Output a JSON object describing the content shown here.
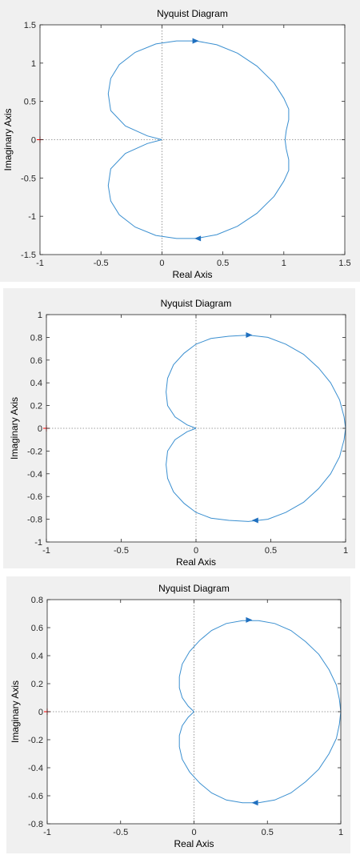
{
  "colors": {
    "curve": "#3a8fd0",
    "critical_point": "#ff0000",
    "axes": "#262626",
    "zero_lines": "#808080",
    "panel_bg": "#f0f0f0"
  },
  "chart_data": [
    {
      "type": "line",
      "title": "Nyquist Diagram",
      "xlabel": "Real Axis",
      "ylabel": "Imaginary Axis",
      "xlim": [
        -1,
        1.5
      ],
      "ylim": [
        -1.5,
        1.5
      ],
      "xticks": [
        "-1",
        "-0.5",
        "0",
        "0.5",
        "1",
        "1.5"
      ],
      "yticks": [
        "1.5",
        "1",
        "0.5",
        "0",
        "-0.5",
        "-1",
        "-1.5"
      ],
      "grid": false,
      "critical_point": [
        -1,
        0
      ],
      "series": [
        {
          "x": [
            0,
            -0.12,
            -0.3,
            -0.42,
            -0.44,
            -0.42,
            -0.35,
            -0.22,
            -0.05,
            0.12,
            0.28,
            0.45,
            0.62,
            0.78,
            0.92,
            1.0,
            1.04,
            1.04,
            1.02,
            1.01
          ],
          "y": [
            0,
            0.05,
            0.18,
            0.38,
            0.6,
            0.8,
            0.98,
            1.14,
            1.25,
            1.29,
            1.29,
            1.24,
            1.13,
            0.96,
            0.74,
            0.54,
            0.4,
            0.26,
            0.12,
            0
          ]
        }
      ],
      "arrows": [
        {
          "x": 0.27,
          "y": 1.29,
          "direction": "right"
        },
        {
          "x": 0.3,
          "y": -1.29,
          "direction": "left"
        }
      ]
    },
    {
      "type": "line",
      "title": "Nyquist Diagram",
      "xlabel": "Real Axis",
      "ylabel": "Imaginary Axis",
      "xlim": [
        -1,
        1
      ],
      "ylim": [
        -1,
        1
      ],
      "xticks": [
        "-1",
        "-0.5",
        "0",
        "0.5",
        "1"
      ],
      "yticks": [
        "1",
        "0.8",
        "0.6",
        "0.4",
        "0.2",
        "0",
        "-0.2",
        "-0.4",
        "-0.6",
        "-0.8",
        "-1"
      ],
      "grid": false,
      "critical_point": [
        -1,
        0
      ],
      "series": [
        {
          "x": [
            0,
            -0.06,
            -0.14,
            -0.19,
            -0.2,
            -0.19,
            -0.15,
            -0.08,
            0.0,
            0.1,
            0.22,
            0.35,
            0.48,
            0.6,
            0.72,
            0.82,
            0.9,
            0.96,
            0.99,
            1.0
          ],
          "y": [
            0,
            0.03,
            0.1,
            0.2,
            0.32,
            0.44,
            0.56,
            0.66,
            0.74,
            0.79,
            0.81,
            0.82,
            0.8,
            0.74,
            0.65,
            0.53,
            0.4,
            0.25,
            0.1,
            0
          ]
        }
      ],
      "arrows": [
        {
          "x": 0.35,
          "y": 0.82,
          "direction": "right"
        },
        {
          "x": 0.4,
          "y": -0.81,
          "direction": "left"
        }
      ]
    },
    {
      "type": "line",
      "title": "Nyquist Diagram",
      "xlabel": "Real Axis",
      "ylabel": "Imaginary Axis",
      "xlim": [
        -1,
        1
      ],
      "ylim": [
        -0.8,
        0.8
      ],
      "xticks": [
        "-1",
        "-0.5",
        "0",
        "0.5",
        "1"
      ],
      "yticks": [
        "0.8",
        "0.6",
        "0.4",
        "0.2",
        "0",
        "-0.2",
        "-0.4",
        "-0.6",
        "-0.8"
      ],
      "grid": false,
      "critical_point": [
        -1,
        0
      ],
      "series": [
        {
          "x": [
            0,
            -0.04,
            -0.08,
            -0.1,
            -0.1,
            -0.08,
            -0.03,
            0.04,
            0.12,
            0.22,
            0.33,
            0.44,
            0.55,
            0.66,
            0.76,
            0.85,
            0.92,
            0.97,
            0.99,
            1.0
          ],
          "y": [
            0,
            0.04,
            0.1,
            0.17,
            0.25,
            0.34,
            0.43,
            0.51,
            0.58,
            0.63,
            0.65,
            0.65,
            0.63,
            0.58,
            0.5,
            0.41,
            0.3,
            0.19,
            0.09,
            0
          ]
        }
      ],
      "arrows": [
        {
          "x": 0.37,
          "y": 0.655,
          "direction": "right"
        },
        {
          "x": 0.42,
          "y": -0.65,
          "direction": "left"
        }
      ]
    }
  ]
}
